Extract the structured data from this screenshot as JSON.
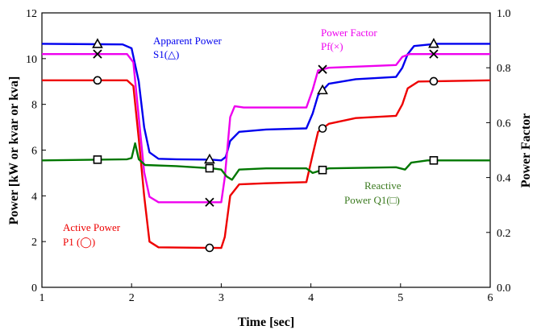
{
  "chart_data": {
    "type": "line",
    "xlabel": "Time [sec]",
    "ylabel_left": "Power [kW or kvar or kva]",
    "ylabel_right": "Power Factor",
    "xlim": [
      1,
      6
    ],
    "ylim_left": [
      0,
      12
    ],
    "ylim_right": [
      0.0,
      1.0
    ],
    "x_ticks": [
      "1",
      "2",
      "3",
      "4",
      "5",
      "6"
    ],
    "y_left_ticks": [
      "0",
      "2",
      "4",
      "6",
      "8",
      "10",
      "12"
    ],
    "y_right_ticks": [
      "0.0",
      "0.2",
      "0.4",
      "0.6",
      "0.8",
      "1.0"
    ],
    "grid": false,
    "series": [
      {
        "key": "apparent",
        "label_lines": [
          "Apparent Power",
          "S1(△)"
        ],
        "axis": "left",
        "color": "#0000ee",
        "marker": "triangle",
        "marker_x": [
          1.62,
          2.87,
          4.13,
          5.37
        ],
        "points": [
          [
            1.0,
            10.65
          ],
          [
            1.9,
            10.62
          ],
          [
            2.0,
            10.45
          ],
          [
            2.08,
            9.0
          ],
          [
            2.14,
            7.0
          ],
          [
            2.2,
            5.9
          ],
          [
            2.3,
            5.62
          ],
          [
            2.5,
            5.6
          ],
          [
            2.9,
            5.58
          ],
          [
            3.0,
            5.55
          ],
          [
            3.05,
            5.7
          ],
          [
            3.1,
            6.4
          ],
          [
            3.2,
            6.8
          ],
          [
            3.5,
            6.9
          ],
          [
            3.95,
            6.95
          ],
          [
            4.02,
            7.6
          ],
          [
            4.08,
            8.4
          ],
          [
            4.2,
            8.9
          ],
          [
            4.5,
            9.1
          ],
          [
            4.95,
            9.2
          ],
          [
            5.02,
            9.6
          ],
          [
            5.08,
            10.2
          ],
          [
            5.15,
            10.55
          ],
          [
            5.4,
            10.65
          ],
          [
            6.0,
            10.65
          ]
        ]
      },
      {
        "key": "power_factor",
        "label_lines": [
          "Power Factor",
          "Pf(×)"
        ],
        "axis": "right",
        "color": "#ee00ee",
        "marker": "cross",
        "marker_x": [
          1.62,
          2.87,
          4.13,
          5.37
        ],
        "points": [
          [
            1.0,
            0.85
          ],
          [
            1.95,
            0.85
          ],
          [
            2.02,
            0.82
          ],
          [
            2.08,
            0.62
          ],
          [
            2.14,
            0.42
          ],
          [
            2.2,
            0.33
          ],
          [
            2.3,
            0.31
          ],
          [
            3.0,
            0.31
          ],
          [
            3.04,
            0.4
          ],
          [
            3.1,
            0.62
          ],
          [
            3.15,
            0.66
          ],
          [
            3.25,
            0.655
          ],
          [
            3.95,
            0.655
          ],
          [
            4.02,
            0.72
          ],
          [
            4.08,
            0.79
          ],
          [
            4.2,
            0.8
          ],
          [
            4.95,
            0.81
          ],
          [
            5.02,
            0.84
          ],
          [
            5.1,
            0.85
          ],
          [
            6.0,
            0.85
          ]
        ]
      },
      {
        "key": "active",
        "label_lines": [
          "Active Power",
          "P1 (◯)"
        ],
        "axis": "left",
        "color": "#ee0000",
        "marker": "circle",
        "marker_x": [
          1.62,
          2.87,
          4.13,
          5.37
        ],
        "points": [
          [
            1.0,
            9.05
          ],
          [
            1.95,
            9.05
          ],
          [
            2.02,
            8.8
          ],
          [
            2.08,
            6.5
          ],
          [
            2.14,
            4.0
          ],
          [
            2.2,
            2.0
          ],
          [
            2.3,
            1.75
          ],
          [
            3.0,
            1.72
          ],
          [
            3.04,
            2.2
          ],
          [
            3.1,
            4.0
          ],
          [
            3.2,
            4.5
          ],
          [
            3.5,
            4.55
          ],
          [
            3.95,
            4.6
          ],
          [
            4.02,
            5.8
          ],
          [
            4.08,
            6.8
          ],
          [
            4.2,
            7.15
          ],
          [
            4.5,
            7.4
          ],
          [
            4.95,
            7.5
          ],
          [
            5.02,
            8.0
          ],
          [
            5.08,
            8.7
          ],
          [
            5.2,
            9.0
          ],
          [
            6.0,
            9.05
          ]
        ]
      },
      {
        "key": "reactive",
        "label_lines": [
          "Reactive",
          "Power Q1(□)"
        ],
        "axis": "left",
        "color": "#007700",
        "marker": "square",
        "marker_x": [
          1.62,
          2.87,
          4.13,
          5.37
        ],
        "points": [
          [
            1.0,
            5.55
          ],
          [
            1.95,
            5.6
          ],
          [
            2.0,
            5.65
          ],
          [
            2.04,
            6.3
          ],
          [
            2.08,
            5.6
          ],
          [
            2.15,
            5.35
          ],
          [
            2.5,
            5.3
          ],
          [
            2.9,
            5.2
          ],
          [
            3.0,
            5.15
          ],
          [
            3.06,
            4.85
          ],
          [
            3.12,
            4.7
          ],
          [
            3.2,
            5.15
          ],
          [
            3.5,
            5.2
          ],
          [
            3.95,
            5.2
          ],
          [
            4.02,
            5.0
          ],
          [
            4.1,
            5.1
          ],
          [
            4.2,
            5.2
          ],
          [
            4.95,
            5.25
          ],
          [
            5.05,
            5.15
          ],
          [
            5.12,
            5.45
          ],
          [
            5.3,
            5.55
          ],
          [
            6.0,
            5.55
          ]
        ]
      }
    ]
  }
}
